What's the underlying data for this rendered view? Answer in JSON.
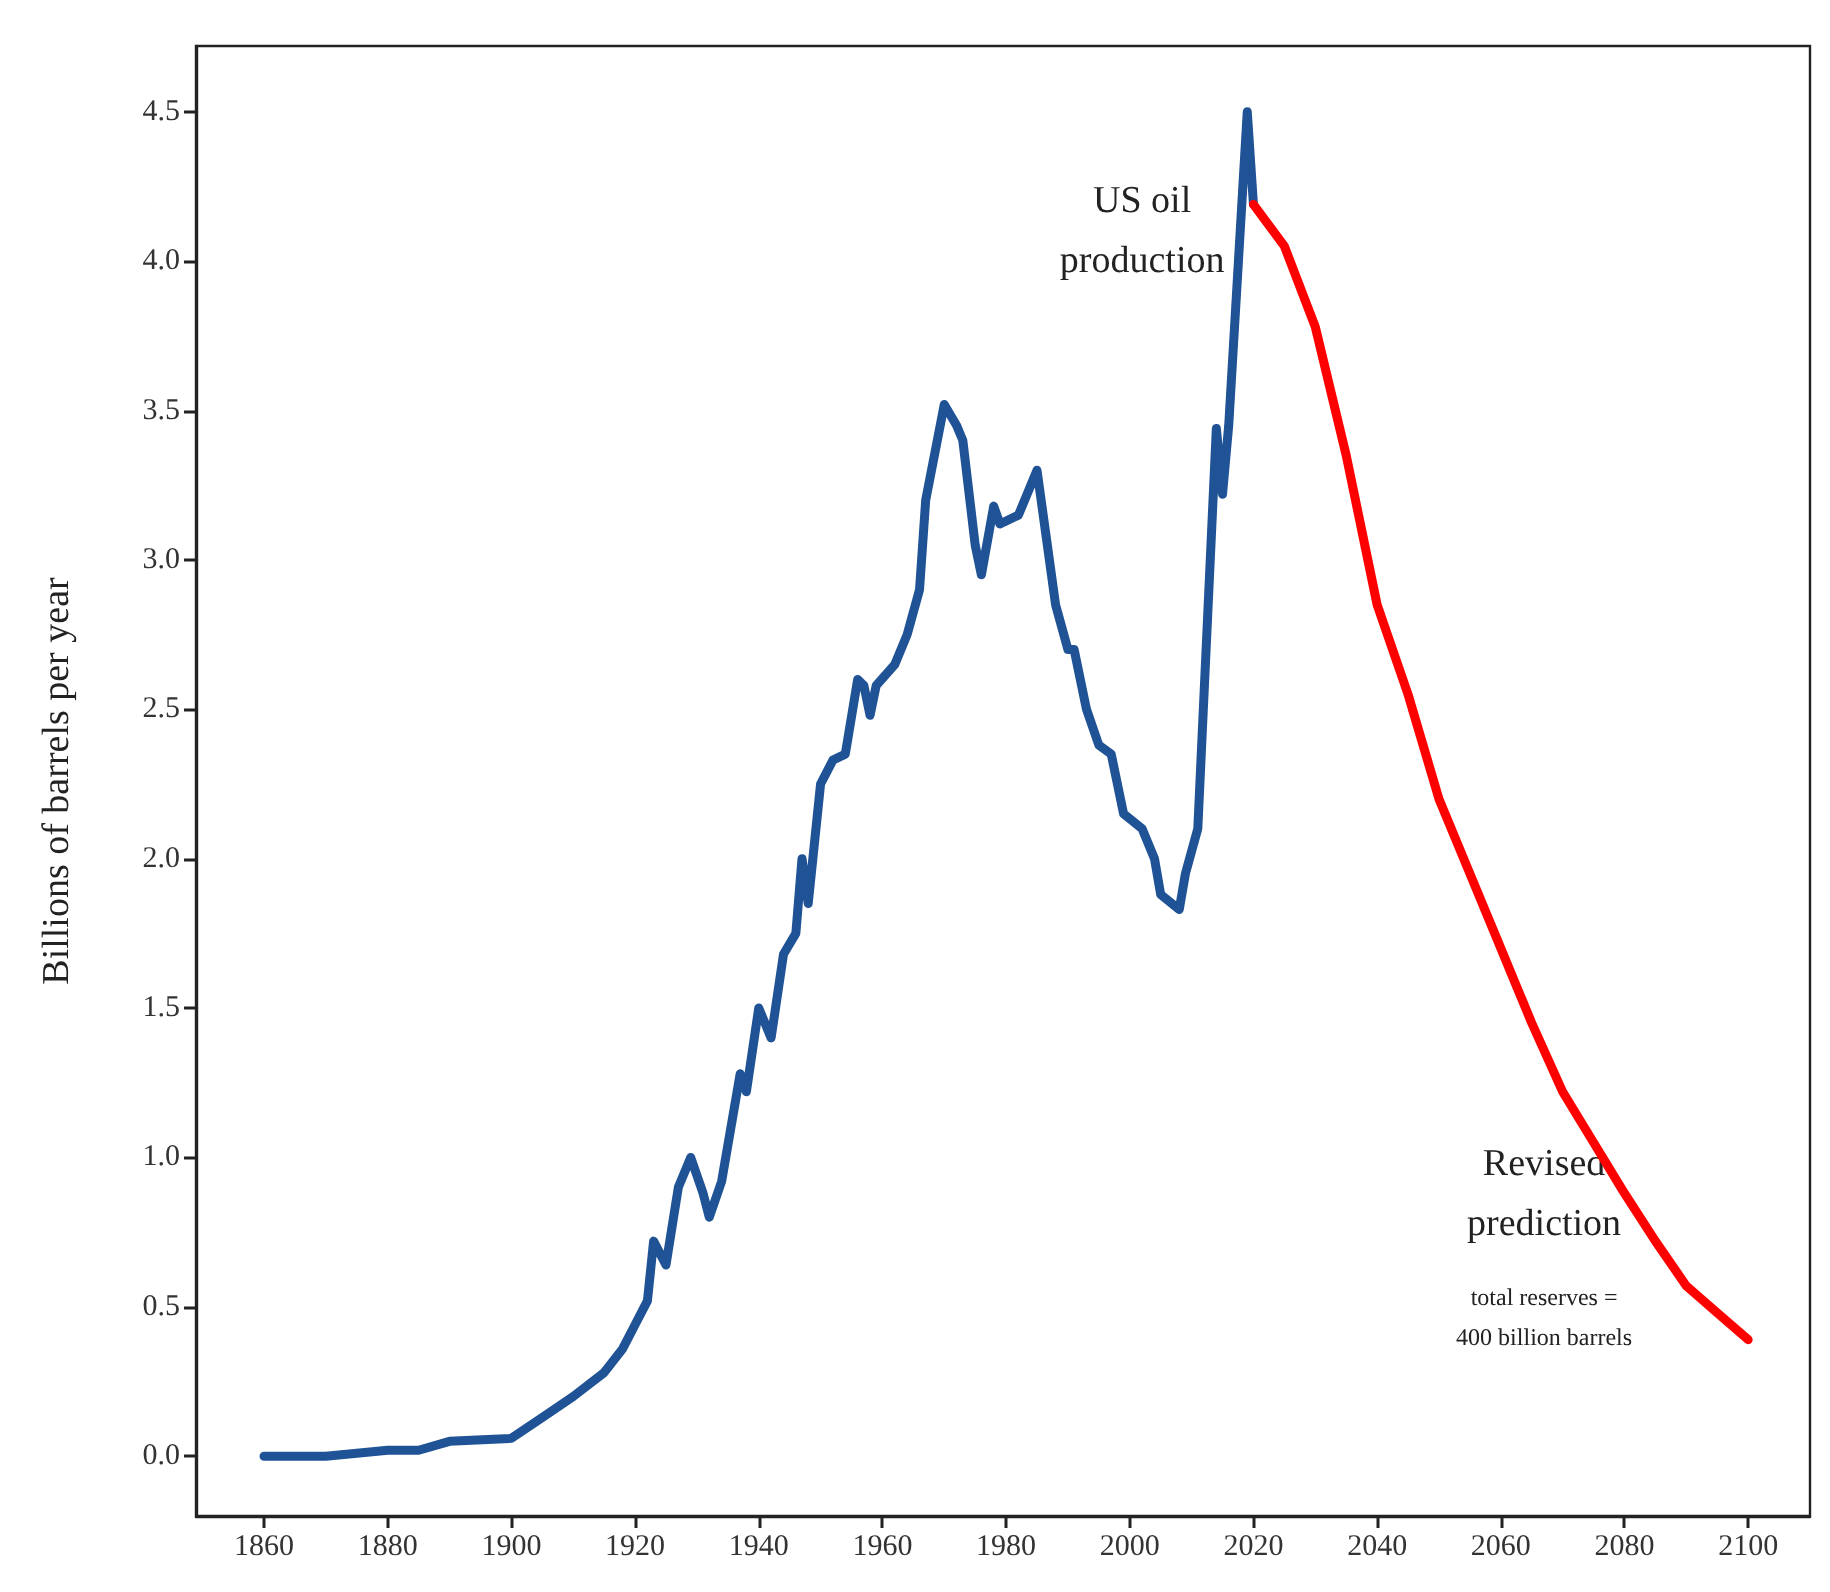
{
  "chart_data": {
    "type": "line",
    "ylabel": "Billions of barrels per year",
    "xlim": [
      1849,
      2110
    ],
    "xticks": [
      1860,
      1880,
      1900,
      1920,
      1940,
      1960,
      1980,
      2000,
      2020,
      2040,
      2060,
      2080,
      2100
    ],
    "ylim": [
      -0.2,
      4.72
    ],
    "yticks": [
      {
        "value": 0,
        "label": "0.0"
      },
      0.5,
      {
        "value": 1,
        "label": "1.0"
      },
      1.5,
      {
        "value": 2,
        "label": "2.0"
      },
      2.5,
      {
        "value": 3,
        "label": "3.0"
      },
      3.5,
      {
        "value": 4,
        "label": "4.0"
      },
      4.5
    ],
    "grid": false,
    "legend": false,
    "marker": "none",
    "line_style": "solid",
    "series": [
      {
        "name": "US oil production",
        "color": "#1f5395",
        "x": [
          1860,
          1870,
          1880,
          1885,
          1890,
          1900,
          1905,
          1910,
          1915,
          1918,
          1920,
          1922,
          1923,
          1925,
          1927,
          1929,
          1931,
          1932,
          1934,
          1937,
          1938,
          1940,
          1942,
          1944,
          1946,
          1947,
          1948,
          1950,
          1952,
          1954,
          1956,
          1957,
          1958,
          1959,
          1962,
          1964,
          1966,
          1967,
          1970,
          1972,
          1973,
          1975,
          1976,
          1978,
          1979,
          1982,
          1985,
          1987,
          1988,
          1990,
          1991,
          1993,
          1995,
          1997,
          1999,
          2002,
          2004,
          2005,
          2008,
          2009,
          2011,
          2014,
          2015,
          2016,
          2019,
          2020
        ],
        "values": [
          0.0,
          0.0,
          0.02,
          0.02,
          0.05,
          0.06,
          0.13,
          0.2,
          0.28,
          0.36,
          0.44,
          0.52,
          0.72,
          0.64,
          0.9,
          1.0,
          0.88,
          0.8,
          0.92,
          1.28,
          1.22,
          1.5,
          1.4,
          1.68,
          1.75,
          2.0,
          1.85,
          2.25,
          2.33,
          2.35,
          2.6,
          2.58,
          2.48,
          2.58,
          2.65,
          2.75,
          2.9,
          3.2,
          3.52,
          3.45,
          3.4,
          3.05,
          2.95,
          3.18,
          3.12,
          3.15,
          3.3,
          3.0,
          2.85,
          2.7,
          2.7,
          2.5,
          2.38,
          2.35,
          2.15,
          2.1,
          2.0,
          1.88,
          1.83,
          1.95,
          2.1,
          3.44,
          3.22,
          3.45,
          4.5,
          4.19
        ]
      },
      {
        "name": "Revised prediction",
        "color": "#ff0000",
        "x": [
          2020,
          2025,
          2030,
          2035,
          2040,
          2045,
          2050,
          2055,
          2060,
          2065,
          2070,
          2075,
          2080,
          2085,
          2090,
          2095,
          2100
        ],
        "values": [
          4.19,
          4.05,
          3.78,
          3.35,
          2.85,
          2.55,
          2.2,
          1.95,
          1.7,
          1.45,
          1.22,
          1.05,
          0.88,
          0.72,
          0.57,
          0.48,
          0.39
        ]
      }
    ],
    "annotations": [
      "total reserves =\n400 billion barrels"
    ]
  }
}
